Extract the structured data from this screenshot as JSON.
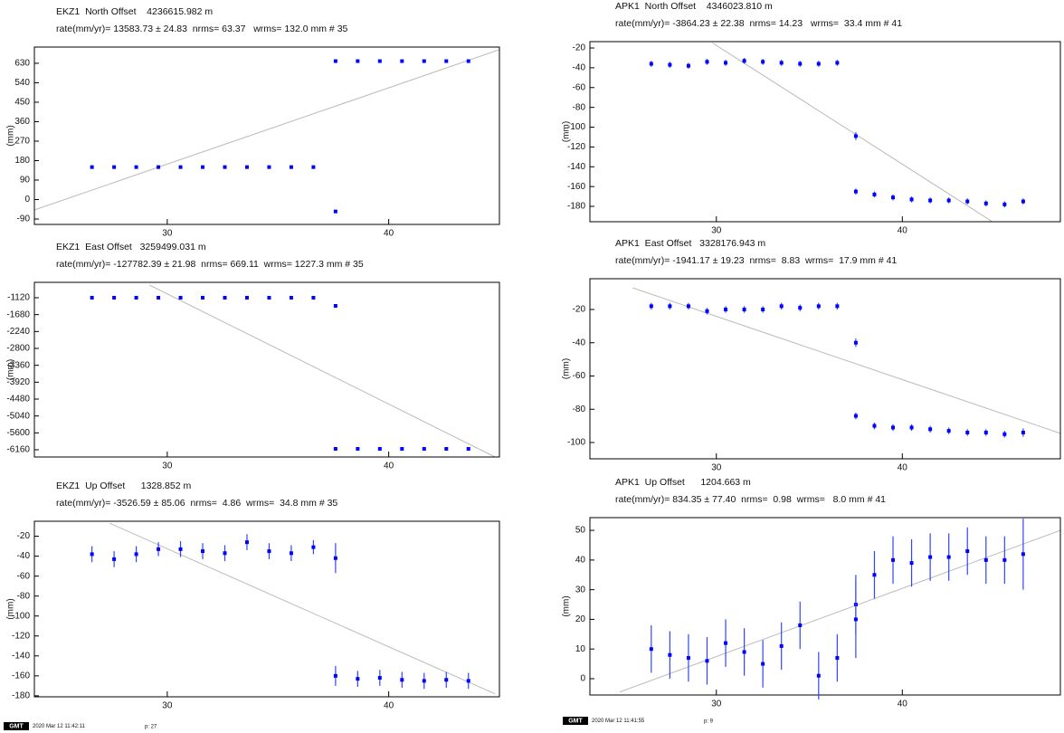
{
  "chart_data": [
    {
      "type": "scatter",
      "title": "EKZ1  North Offset    4236615.982 m",
      "subtitle": "rate(mm/yr)= 13583.73 ± 24.83  nrms= 63.37   wrms= 132.0 mm # 35",
      "ylabel": "(mm)",
      "color": "#0000ff",
      "xlim": [
        24,
        45
      ],
      "xticks": [
        30,
        40
      ],
      "ylim": [
        -115,
        705
      ],
      "yticks": [
        630,
        540,
        450,
        360,
        270,
        180,
        90,
        0,
        -90
      ],
      "x": [
        26.6,
        27.6,
        28.6,
        29.6,
        30.6,
        31.6,
        32.6,
        33.6,
        34.6,
        35.6,
        36.6,
        37.6,
        37.6,
        38.6,
        39.6,
        40.6,
        41.6,
        42.6,
        43.6
      ],
      "values": [
        150,
        150,
        150,
        150,
        150,
        150,
        150,
        150,
        150,
        150,
        150,
        640,
        -55,
        640,
        640,
        640,
        640,
        640,
        640
      ],
      "trend": {
        "x": [
          24,
          45
        ],
        "y": [
          -48,
          693
        ],
        "color": "#bbbbbb"
      }
    },
    {
      "type": "scatter",
      "title": "EKZ1  East Offset   3259499.031 m",
      "subtitle": "rate(mm/yr)= -127782.39 ± 21.98  nrms= 669.11  wrms= 1227.3 mm # 35",
      "ylabel": "(mm)",
      "color": "#0000ff",
      "xlim": [
        24,
        45
      ],
      "xticks": [
        30,
        40
      ],
      "ylim": [
        -6400,
        -610
      ],
      "yticks": [
        -1120,
        -1680,
        -2240,
        -2800,
        -3360,
        -3920,
        -4480,
        -5040,
        -5600,
        -6160
      ],
      "x": [
        26.6,
        27.6,
        28.6,
        29.6,
        30.6,
        31.6,
        32.6,
        33.6,
        34.6,
        35.6,
        36.6,
        37.6,
        37.6,
        38.6,
        39.6,
        40.6,
        41.6,
        42.6,
        43.6
      ],
      "values": [
        -1120,
        -1120,
        -1120,
        -1120,
        -1120,
        -1120,
        -1120,
        -1120,
        -1120,
        -1120,
        -1120,
        -1390,
        -6130,
        -6130,
        -6130,
        -6130,
        -6130,
        -6130,
        -6130
      ],
      "trend": {
        "x": [
          29.2,
          44.8
        ],
        "y": [
          -700,
          -6400
        ],
        "color": "#bbbbbb"
      }
    },
    {
      "type": "scatter",
      "title": "EKZ1  Up Offset      1328.852 m",
      "subtitle": "rate(mm/yr)= -3526.59 ± 85.06  nrms=  4.86  wrms=  34.8 mm # 35",
      "ylabel": "(mm)",
      "color": "#0000ff",
      "xlim": [
        24,
        45
      ],
      "xticks": [
        30,
        40
      ],
      "ylim": [
        -181,
        -5
      ],
      "yticks": [
        -20,
        -40,
        -60,
        -80,
        -100,
        -120,
        -140,
        -160,
        -180
      ],
      "x": [
        26.6,
        27.6,
        28.6,
        29.6,
        30.6,
        31.6,
        32.6,
        33.6,
        34.6,
        35.6,
        36.6,
        37.6,
        37.6,
        38.6,
        39.6,
        40.6,
        41.6,
        42.6,
        43.6
      ],
      "values": [
        -38,
        -43,
        -38,
        -33,
        -33,
        -35,
        -37,
        -26,
        -35,
        -37,
        -31,
        -42,
        -160,
        -163,
        -162,
        -164,
        -165,
        -164,
        -165
      ],
      "errors": [
        8,
        8,
        8,
        7,
        8,
        8,
        8,
        8,
        8,
        8,
        7,
        15,
        10,
        8,
        8,
        8,
        8,
        8,
        8
      ],
      "trend": {
        "x": [
          27.4,
          44.8
        ],
        "y": [
          -7,
          -178
        ],
        "color": "#bbbbbb"
      }
    },
    {
      "type": "scatter",
      "title": "APK1  North Offset    4346023.810 m",
      "subtitle": "rate(mm/yr)= -3864.23 ± 22.38  nrms= 14.23   wrms=  33.4 mm # 41",
      "ylabel": "(mm)",
      "color": "#0000ff",
      "xlim": [
        23.2,
        48.5
      ],
      "xticks": [
        30,
        40
      ],
      "ylim": [
        -195.5,
        -13.6
      ],
      "yticks": [
        -20,
        -40,
        -60,
        -80,
        -100,
        -120,
        -140,
        -160,
        -180
      ],
      "x": [
        26.5,
        27.5,
        28.5,
        29.5,
        30.5,
        31.5,
        32.5,
        33.5,
        34.5,
        35.5,
        36.5,
        37.5,
        37.5,
        38.5,
        39.5,
        40.5,
        41.5,
        42.5,
        43.5,
        44.5,
        45.5,
        46.5
      ],
      "values": [
        -36,
        -37,
        -38,
        -34,
        -35,
        -33,
        -34,
        -35,
        -36,
        -36,
        -35,
        -109,
        -165,
        -168,
        -171,
        -173,
        -174,
        -174,
        -175,
        -177,
        -178,
        -175
      ],
      "errors": [
        3,
        3,
        3,
        3,
        3,
        3,
        3,
        3,
        3,
        3,
        3,
        4,
        3,
        3,
        3,
        3,
        3,
        3,
        3,
        3,
        3,
        3
      ],
      "trend": {
        "x": [
          29.8,
          44.8
        ],
        "y": [
          -15,
          -195
        ],
        "color": "#bbbbbb"
      }
    },
    {
      "type": "scatter",
      "title": "APK1  East Offset   3328176.943 m",
      "subtitle": "rate(mm/yr)= -1941.17 ± 19.23  nrms=  8.83  wrms=  17.9 mm # 41",
      "ylabel": "(mm)",
      "color": "#0000ff",
      "xlim": [
        23.2,
        48.5
      ],
      "xticks": [
        30,
        40
      ],
      "ylim": [
        -109.8,
        -1.5
      ],
      "yticks": [
        -20,
        -40,
        -60,
        -80,
        -100
      ],
      "x": [
        26.5,
        27.5,
        28.5,
        29.5,
        30.5,
        31.5,
        32.5,
        33.5,
        34.5,
        35.5,
        36.5,
        37.5,
        37.5,
        38.5,
        39.5,
        40.5,
        41.5,
        42.5,
        43.5,
        44.5,
        45.5,
        46.5
      ],
      "values": [
        -18,
        -18,
        -18,
        -21,
        -20,
        -20,
        -20,
        -18,
        -19,
        -18,
        -18,
        -40,
        -84,
        -90,
        -91,
        -91,
        -92,
        -93,
        -94,
        -94,
        -95,
        -94
      ],
      "errors": [
        2,
        2,
        2,
        2,
        2,
        2,
        2,
        2,
        2,
        2,
        2,
        2.5,
        2,
        2,
        2,
        2,
        2,
        2,
        2,
        2,
        2,
        2.5
      ],
      "trend": {
        "x": [
          25.5,
          48.5
        ],
        "y": [
          -7,
          -94.5
        ],
        "color": "#bbbbbb"
      }
    },
    {
      "type": "scatter",
      "title": "APK1  Up Offset      1204.663 m",
      "subtitle": "rate(mm/yr)= 834.35 ± 77.40  nrms=  0.98  wrms=   8.0 mm # 41",
      "ylabel": "(mm)",
      "color": "#0000ff",
      "xlim": [
        23.2,
        48.5
      ],
      "xticks": [
        30,
        40
      ],
      "ylim": [
        -5.5,
        54.3
      ],
      "yticks": [
        50,
        40,
        30,
        20,
        10,
        0
      ],
      "x": [
        26.5,
        27.5,
        28.5,
        29.5,
        30.5,
        31.5,
        32.5,
        33.5,
        34.5,
        35.5,
        36.5,
        37.5,
        37.5,
        38.5,
        39.5,
        40.5,
        41.5,
        42.5,
        43.5,
        44.5,
        45.5,
        46.5
      ],
      "values": [
        10,
        8,
        7,
        6,
        12,
        9,
        5,
        11,
        18,
        1,
        7,
        25,
        20,
        35,
        40,
        39,
        41,
        41,
        43,
        40,
        40,
        42
      ],
      "errors": [
        8,
        8,
        8,
        8,
        8,
        8,
        8,
        8,
        8,
        8,
        8,
        10,
        13,
        8,
        8,
        8,
        8,
        8,
        8,
        8,
        8,
        12
      ],
      "trend": {
        "x": [
          24.8,
          48.5
        ],
        "y": [
          -4.5,
          50
        ],
        "color": "#bbbbbb"
      }
    }
  ],
  "footers": [
    {
      "logo": "GMT",
      "timestamp": "2020 Mar 12 11:42:11",
      "page": "p: 27"
    },
    {
      "logo": "GMT",
      "timestamp": "2020 Mar 12 11:41:55",
      "page": "p: 9"
    }
  ]
}
